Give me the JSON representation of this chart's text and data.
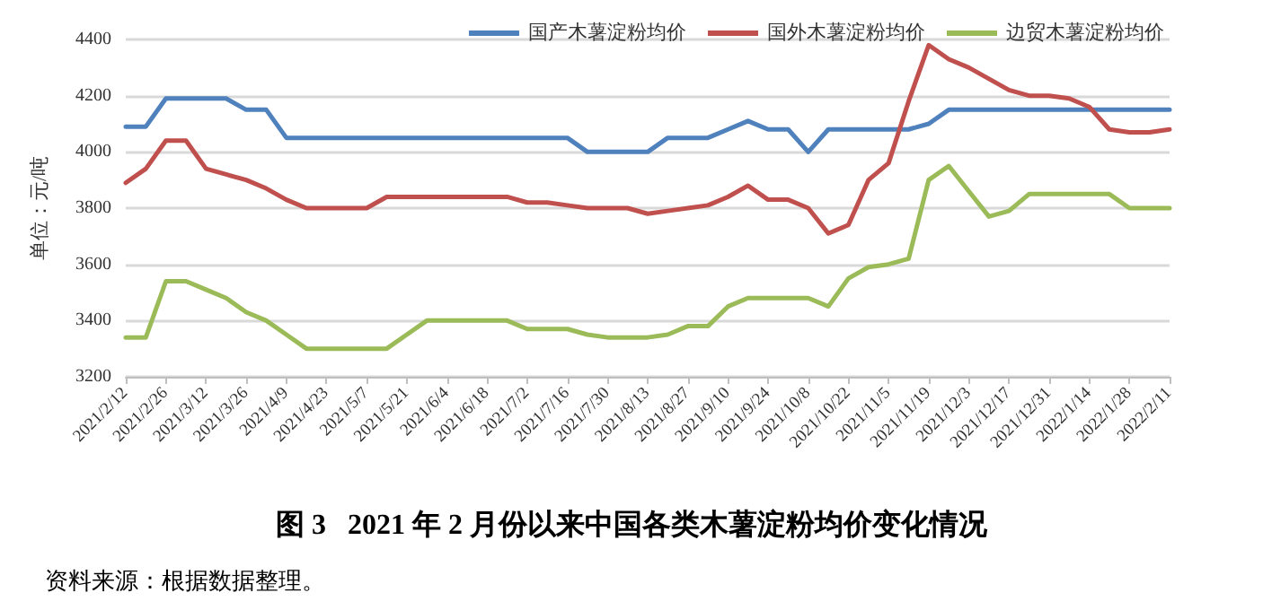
{
  "chart_data": {
    "type": "line",
    "title": "图 3   2021 年 2 月份以来中国各类木薯淀粉均价变化情况",
    "ylabel": "单位：元/吨",
    "annotations": [
      "资料来源：根据数据整理。"
    ],
    "categories": [
      "2021/2/12",
      null,
      "2021/2/26",
      null,
      "2021/3/12",
      null,
      "2021/3/26",
      null,
      "2021/4/9",
      null,
      "2021/4/23",
      null,
      "2021/5/7",
      null,
      "2021/5/21",
      null,
      "2021/6/4",
      null,
      "2021/6/18",
      null,
      "2021/7/2",
      null,
      "2021/7/16",
      null,
      "2021/7/30",
      null,
      "2021/8/13",
      null,
      "2021/8/27",
      null,
      "2021/9/10",
      null,
      "2021/9/24",
      null,
      "2021/10/8",
      null,
      "2021/10/22",
      null,
      "2021/11/5",
      null,
      "2021/11/19",
      null,
      "2021/12/3",
      null,
      "2021/12/17",
      null,
      "2021/12/31",
      null,
      "2022/1/14",
      null,
      "2022/1/28",
      null,
      "2022/2/11"
    ],
    "series": [
      {
        "name": "国产木薯淀粉均价",
        "color": "#4f81bd",
        "values": [
          4090,
          4090,
          4190,
          4190,
          4190,
          4190,
          4150,
          4150,
          4050,
          4050,
          4050,
          4050,
          4050,
          4050,
          4050,
          4050,
          4050,
          4050,
          4050,
          4050,
          4050,
          4050,
          4050,
          4000,
          4000,
          4000,
          4000,
          4050,
          4050,
          4050,
          4080,
          4110,
          4080,
          4080,
          4000,
          4080,
          4080,
          4080,
          4080,
          4080,
          4100,
          4150,
          4150,
          4150,
          4150,
          4150,
          4150,
          4150,
          4150,
          4150,
          4150,
          4150,
          4150
        ]
      },
      {
        "name": "国外木薯淀粉均价",
        "color": "#c0504d",
        "values": [
          3890,
          3940,
          4040,
          4040,
          3940,
          3920,
          3900,
          3870,
          3830,
          3800,
          3800,
          3800,
          3800,
          3840,
          3840,
          3840,
          3840,
          3840,
          3840,
          3840,
          3820,
          3820,
          3810,
          3800,
          3800,
          3800,
          3780,
          3790,
          3800,
          3810,
          3840,
          3880,
          3830,
          3830,
          3800,
          3710,
          3740,
          3900,
          3960,
          4180,
          4380,
          4330,
          4300,
          4260,
          4220,
          4200,
          4200,
          4190,
          4160,
          4080,
          4070,
          4070,
          4080
        ]
      },
      {
        "name": "边贸木薯淀粉均价",
        "color": "#9bbb59",
        "values": [
          3340,
          3340,
          3540,
          3540,
          3510,
          3480,
          3430,
          3400,
          3350,
          3300,
          3300,
          3300,
          3300,
          3300,
          3350,
          3400,
          3400,
          3400,
          3400,
          3400,
          3370,
          3370,
          3370,
          3350,
          3340,
          3340,
          3340,
          3350,
          3380,
          3380,
          3450,
          3480,
          3480,
          3480,
          3480,
          3450,
          3550,
          3590,
          3600,
          3620,
          3900,
          3950,
          3860,
          3770,
          3790,
          3850,
          3850,
          3850,
          3850,
          3850,
          3800,
          3800,
          3800
        ]
      }
    ],
    "ylim": [
      3200,
      4400
    ],
    "yticks": [
      3200,
      3400,
      3600,
      3800,
      4000,
      4200,
      4400
    ],
    "grid": "y",
    "legend": "top right",
    "marker": "none",
    "line_style": "solid"
  }
}
